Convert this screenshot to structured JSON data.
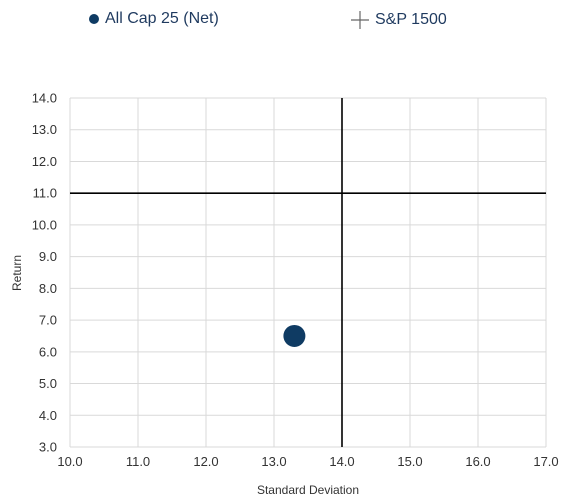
{
  "chart_data": {
    "type": "scatter",
    "xlabel": "Standard Deviation",
    "ylabel": "Return",
    "xlim": [
      10.0,
      17.0
    ],
    "ylim": [
      3.0,
      14.0
    ],
    "x_ticks": [
      "10.0",
      "11.0",
      "12.0",
      "13.0",
      "14.0",
      "15.0",
      "16.0",
      "17.0"
    ],
    "y_ticks": [
      "3.0",
      "4.0",
      "5.0",
      "6.0",
      "7.0",
      "8.0",
      "9.0",
      "10.0",
      "11.0",
      "12.0",
      "13.0",
      "14.0"
    ],
    "grid": true,
    "legend_position": "top",
    "series": [
      {
        "name": "All Cap 25 (Net)",
        "marker": "circle",
        "color": "#0f3b63",
        "points": [
          {
            "x": 13.3,
            "y": 6.5
          }
        ]
      },
      {
        "name": "S&P 1500",
        "marker": "crosshair",
        "color": "#000000",
        "points": [
          {
            "x": 14.0,
            "y": 11.0
          }
        ]
      }
    ]
  }
}
